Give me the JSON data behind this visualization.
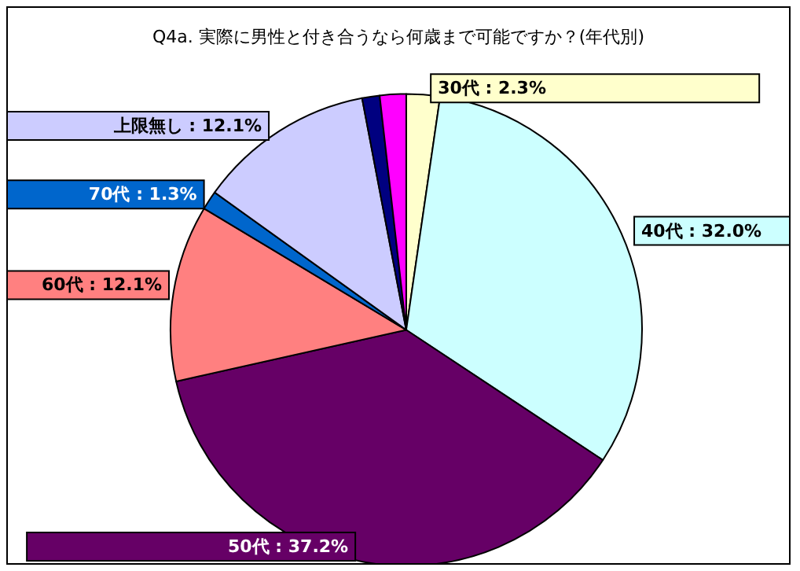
{
  "chart_data": {
    "type": "pie",
    "title": "Q4a. 実際に男性と付き合うなら何歳まで可能ですか？(年代別)",
    "categories": [
      "30代",
      "40代",
      "50代",
      "60代",
      "70代",
      "上限無し",
      null,
      null
    ],
    "values": [
      2.3,
      32.0,
      37.2,
      12.1,
      1.3,
      12.1,
      1.2,
      1.8
    ],
    "value_labels": [
      "2.3%",
      "32.0%",
      "37.2%",
      "12.1%",
      "1.3%",
      "12.1%",
      null,
      null
    ],
    "colors": [
      "#ffffcc",
      "#ccffff",
      "#660066",
      "#ff8080",
      "#0066cc",
      "#ccccff",
      "#000080",
      "#ff00ff"
    ],
    "legend": false
  }
}
